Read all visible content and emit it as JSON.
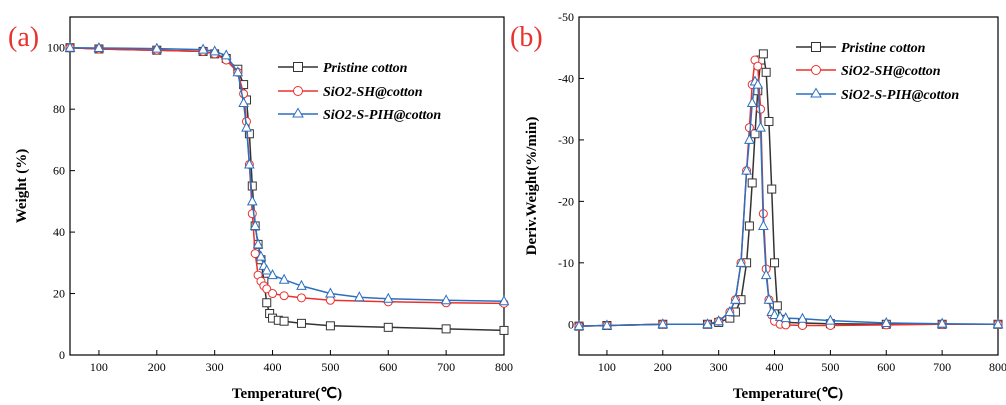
{
  "chart_data": [
    {
      "type": "line",
      "panel_label": "(a)",
      "xlabel": "Temperature(℃)",
      "ylabel": "Weight (%)",
      "xlim": [
        50,
        800
      ],
      "ylim": [
        0,
        110
      ],
      "xticks": [
        100,
        200,
        300,
        400,
        500,
        600,
        700,
        800
      ],
      "yticks": [
        0,
        20,
        40,
        60,
        80,
        100
      ],
      "legend_position": "top-right",
      "series": [
        {
          "name": "Pristine cotton",
          "color": "#333333",
          "marker": "square",
          "x": [
            50,
            100,
            200,
            280,
            300,
            320,
            340,
            350,
            355,
            360,
            365,
            370,
            375,
            380,
            385,
            390,
            395,
            400,
            410,
            420,
            450,
            500,
            600,
            700,
            800
          ],
          "y": [
            100,
            99.6,
            99.2,
            98.8,
            98,
            96.5,
            93,
            88,
            83,
            72,
            55,
            42,
            36,
            31,
            24,
            17,
            13.5,
            12,
            11.3,
            11,
            10.3,
            9.5,
            9,
            8.5,
            8
          ]
        },
        {
          "name": "SiO2-SH@cotton",
          "color": "#e8322e",
          "marker": "circle",
          "x": [
            50,
            100,
            200,
            280,
            300,
            320,
            340,
            350,
            355,
            360,
            365,
            370,
            375,
            380,
            385,
            390,
            400,
            420,
            450,
            500,
            600,
            700,
            800
          ],
          "y": [
            100,
            99.6,
            99.2,
            98.8,
            98,
            96,
            92,
            85,
            76,
            62,
            46,
            33,
            26,
            24,
            22.5,
            21.5,
            20,
            19.3,
            18.6,
            17.8,
            17.3,
            17,
            16.8
          ]
        },
        {
          "name": "SiO2-S-PIH@cotton",
          "color": "#2c6fbf",
          "marker": "triangle",
          "x": [
            50,
            100,
            200,
            280,
            300,
            320,
            340,
            350,
            355,
            360,
            365,
            370,
            375,
            380,
            385,
            390,
            400,
            420,
            450,
            500,
            550,
            600,
            700,
            800
          ],
          "y": [
            100,
            99.9,
            99.7,
            99.4,
            98.8,
            97.5,
            92,
            82,
            74,
            62,
            50,
            42,
            36,
            32,
            29,
            27.5,
            26,
            24.5,
            22.5,
            20,
            18.8,
            18.3,
            17.8,
            17.5
          ]
        }
      ]
    },
    {
      "type": "line",
      "panel_label": "(b)",
      "xlabel": "Temperature(℃)",
      "ylabel": "Deriv.Weight(%/min)",
      "xlim": [
        50,
        800
      ],
      "ylim": [
        5,
        -50
      ],
      "y_inverted": true,
      "xticks": [
        100,
        200,
        300,
        400,
        500,
        600,
        700,
        800
      ],
      "yticks": [
        0,
        -10,
        -20,
        -30,
        -40,
        -50
      ],
      "legend_position": "top-right",
      "series": [
        {
          "name": "Pristine cotton",
          "color": "#333333",
          "marker": "square",
          "x": [
            50,
            100,
            200,
            280,
            300,
            320,
            330,
            340,
            350,
            355,
            360,
            365,
            370,
            375,
            380,
            385,
            390,
            395,
            400,
            405,
            410,
            420,
            450,
            500,
            600,
            700,
            800
          ],
          "y": [
            0.3,
            0.2,
            0,
            0,
            -0.3,
            -1,
            -2,
            -4,
            -10,
            -16,
            -23,
            -31,
            -38,
            -43,
            -44,
            -41,
            -33,
            -22,
            -10,
            -3,
            -0.8,
            -0.3,
            -0.2,
            -0.1,
            0,
            0,
            0
          ]
        },
        {
          "name": "SiO2-SH@cotton",
          "color": "#e8322e",
          "marker": "circle",
          "x": [
            50,
            100,
            200,
            280,
            300,
            320,
            330,
            340,
            350,
            355,
            360,
            365,
            370,
            375,
            380,
            385,
            390,
            395,
            400,
            410,
            420,
            450,
            500,
            600,
            700,
            800
          ],
          "y": [
            0.3,
            0.2,
            0,
            0,
            -0.5,
            -2,
            -4,
            -10,
            -25,
            -32,
            -39,
            -43,
            -42,
            -35,
            -18,
            -9,
            -4,
            -1.5,
            -0.5,
            0,
            0.1,
            0.2,
            0.2,
            0.1,
            0,
            0
          ]
        },
        {
          "name": "SiO2-S-PIH@cotton",
          "color": "#2c6fbf",
          "marker": "triangle",
          "x": [
            50,
            100,
            200,
            280,
            300,
            320,
            330,
            340,
            350,
            355,
            360,
            365,
            370,
            375,
            380,
            385,
            390,
            395,
            400,
            410,
            420,
            450,
            500,
            600,
            700,
            800
          ],
          "y": [
            0.3,
            0.2,
            0,
            0,
            -0.5,
            -2,
            -4,
            -10,
            -25,
            -30,
            -36,
            -39.5,
            -39,
            -32,
            -16,
            -8,
            -4,
            -2,
            -1.5,
            -1.2,
            -1,
            -0.9,
            -0.6,
            -0.2,
            -0.1,
            0
          ]
        }
      ]
    }
  ]
}
